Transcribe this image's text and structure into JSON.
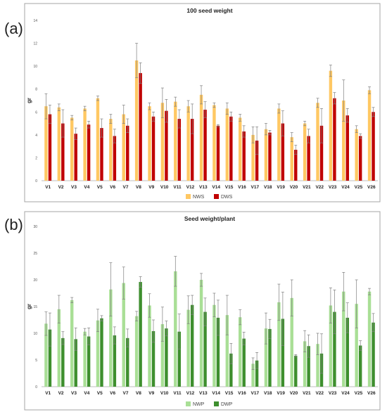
{
  "panels": [
    {
      "letter": "(a)",
      "chart_data": {
        "type": "bar",
        "title": "100 seed weight",
        "ylabel": "gr",
        "xlabel": "",
        "ylim": [
          0,
          14
        ],
        "yticks": [
          0,
          2,
          4,
          6,
          8,
          10,
          12,
          14
        ],
        "grid": false,
        "legend_position": "bottom-center",
        "categories": [
          "V1",
          "V2",
          "V3",
          "V4",
          "V5",
          "V6",
          "V7",
          "V8",
          "V9",
          "V10",
          "V11",
          "V12",
          "V13",
          "V14",
          "V15",
          "V16",
          "V17",
          "V18",
          "V19",
          "V20",
          "V21",
          "V22",
          "V23",
          "V24",
          "V25",
          "V26"
        ],
        "series": [
          {
            "name": "NWS",
            "color": "#FFC863",
            "values": [
              6.5,
              6.4,
              5.5,
              6.3,
              7.2,
              5.4,
              5.8,
              10.5,
              6.5,
              6.8,
              6.9,
              6.5,
              7.5,
              6.6,
              6.3,
              5.5,
              4.0,
              4.5,
              6.3,
              3.8,
              5.0,
              6.8,
              9.6,
              7.0,
              4.5,
              7.9
            ],
            "errors": [
              1.1,
              0.3,
              0.2,
              0.2,
              0.2,
              0.4,
              0.8,
              1.5,
              0.3,
              1.3,
              0.4,
              0.5,
              0.8,
              0.2,
              0.5,
              0.3,
              0.7,
              0.5,
              0.4,
              0.4,
              0.2,
              0.4,
              0.5,
              1.8,
              0.3,
              0.3
            ]
          },
          {
            "name": "DWS",
            "color": "#C00000",
            "values": [
              5.8,
              5.0,
              4.1,
              4.9,
              4.6,
              3.9,
              4.8,
              9.4,
              5.6,
              6.1,
              5.4,
              5.4,
              6.2,
              4.8,
              5.6,
              4.3,
              3.5,
              4.2,
              5.0,
              2.7,
              3.9,
              4.8,
              7.2,
              5.7,
              3.9,
              6.0
            ],
            "errors": [
              0.8,
              1.2,
              0.5,
              0.3,
              0.8,
              0.6,
              0.6,
              0.9,
              0.4,
              1.0,
              0.8,
              1.3,
              0.7,
              0.1,
              0.4,
              0.5,
              1.2,
              0.2,
              1.1,
              0.4,
              0.6,
              1.5,
              0.5,
              0.6,
              0.2,
              0.4
            ]
          }
        ]
      }
    },
    {
      "letter": "(b)",
      "chart_data": {
        "type": "bar",
        "title": "Seed weight/plant",
        "ylabel": "gr",
        "xlabel": "",
        "ylim": [
          0,
          30
        ],
        "yticks": [
          0,
          5,
          10,
          15,
          20,
          25,
          30
        ],
        "grid": false,
        "legend_position": "bottom-center",
        "categories": [
          "V1",
          "V2",
          "V3",
          "V4",
          "V5",
          "V6",
          "V7",
          "V8",
          "V9",
          "V10",
          "V11",
          "V12",
          "V13",
          "V14",
          "V15",
          "V16",
          "V17",
          "V18",
          "V19",
          "V20",
          "V21",
          "V22",
          "V23",
          "V24",
          "V25",
          "V26"
        ],
        "series": [
          {
            "name": "NWP",
            "color": "#A9DF96",
            "values": [
              11.8,
              14.5,
              16.2,
              10.3,
              12.4,
              18.2,
              19.4,
              13.2,
              15.2,
              11.7,
              21.6,
              14.4,
              20.0,
              15.3,
              13.4,
              13.0,
              4.3,
              10.9,
              15.8,
              16.6,
              8.5,
              8.0,
              15.2,
              17.8,
              15.5,
              17.8
            ],
            "errors": [
              2.2,
              2.6,
              0.5,
              0.6,
              2.1,
              5.0,
              3.0,
              0.9,
              2.2,
              3.2,
              2.8,
              2.6,
              1.2,
              2.2,
              3.7,
              1.4,
              1.1,
              2.9,
              3.4,
              3.4,
              2.0,
              2.0,
              3.3,
              3.6,
              4.5,
              0.6
            ]
          },
          {
            "name": "DWP",
            "color": "#3E8F2E",
            "values": [
              10.7,
              9.1,
              8.9,
              9.4,
              12.8,
              9.6,
              9.1,
              19.6,
              10.4,
              10.9,
              10.3,
              15.3,
              14.0,
              12.9,
              6.2,
              9.0,
              4.9,
              10.8,
              12.7,
              5.8,
              7.6,
              6.2,
              14.0,
              12.9,
              7.7,
              12.0
            ],
            "errors": [
              3.1,
              1.2,
              2.1,
              1.6,
              0.5,
              1.6,
              1.7,
              1.0,
              2.1,
              1.4,
              3.3,
              1.8,
              2.6,
              3.3,
              1.9,
              1.2,
              1.5,
              1.8,
              5.0,
              0.2,
              2.1,
              3.7,
              4.1,
              2.8,
              0.9,
              1.7
            ]
          }
        ]
      }
    }
  ]
}
